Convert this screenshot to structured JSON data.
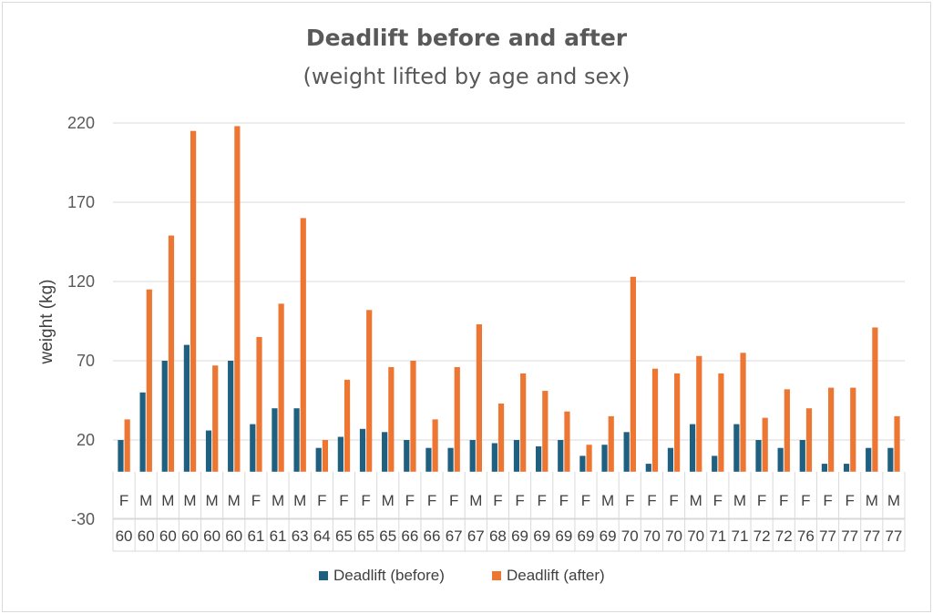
{
  "chart_data": {
    "type": "bar",
    "title": "Deadlift before and after",
    "subtitle": "(weight lifted by age and sex)",
    "xlabel": "",
    "ylabel": "weight (kg)",
    "ylim": [
      -30,
      220
    ],
    "yticks": [
      220,
      170,
      120,
      70,
      20,
      -30
    ],
    "grid": true,
    "legend_position": "bottom",
    "categories_sex": [
      "F",
      "M",
      "M",
      "M",
      "M",
      "M",
      "F",
      "M",
      "M",
      "F",
      "F",
      "F",
      "M",
      "F",
      "F",
      "F",
      "M",
      "F",
      "F",
      "F",
      "F",
      "F",
      "M",
      "F",
      "F",
      "F",
      "M",
      "F",
      "M",
      "F",
      "F",
      "F",
      "F",
      "F",
      "M",
      "M"
    ],
    "categories_age": [
      "60",
      "60",
      "60",
      "60",
      "60",
      "60",
      "61",
      "61",
      "63",
      "64",
      "65",
      "65",
      "65",
      "66",
      "66",
      "67",
      "67",
      "68",
      "69",
      "69",
      "69",
      "69",
      "69",
      "70",
      "70",
      "70",
      "70",
      "71",
      "71",
      "72",
      "72",
      "76",
      "77",
      "77",
      "77",
      "77"
    ],
    "series": [
      {
        "name": "Deadlift (before)",
        "color": "#1f5f7f",
        "values": [
          20,
          50,
          70,
          80,
          26,
          70,
          30,
          40,
          40,
          15,
          22,
          27,
          25,
          20,
          15,
          15,
          20,
          18,
          20,
          16,
          20,
          10,
          17,
          25,
          5,
          15,
          30,
          10,
          30,
          20,
          15,
          20,
          5,
          5,
          15,
          15
        ]
      },
      {
        "name": "Deadlift (after)",
        "color": "#ed7633",
        "values": [
          33,
          115,
          149,
          215,
          67,
          218,
          85,
          106,
          160,
          20,
          58,
          102,
          66,
          70,
          33,
          66,
          93,
          43,
          62,
          51,
          38,
          17,
          35,
          123,
          65,
          62,
          73,
          62,
          75,
          34,
          52,
          40,
          53,
          53,
          91,
          35
        ]
      }
    ]
  },
  "colors": {
    "before": "#1f5f7f",
    "after": "#ed7633",
    "grid": "#d9d9d9",
    "text": "#595959"
  }
}
